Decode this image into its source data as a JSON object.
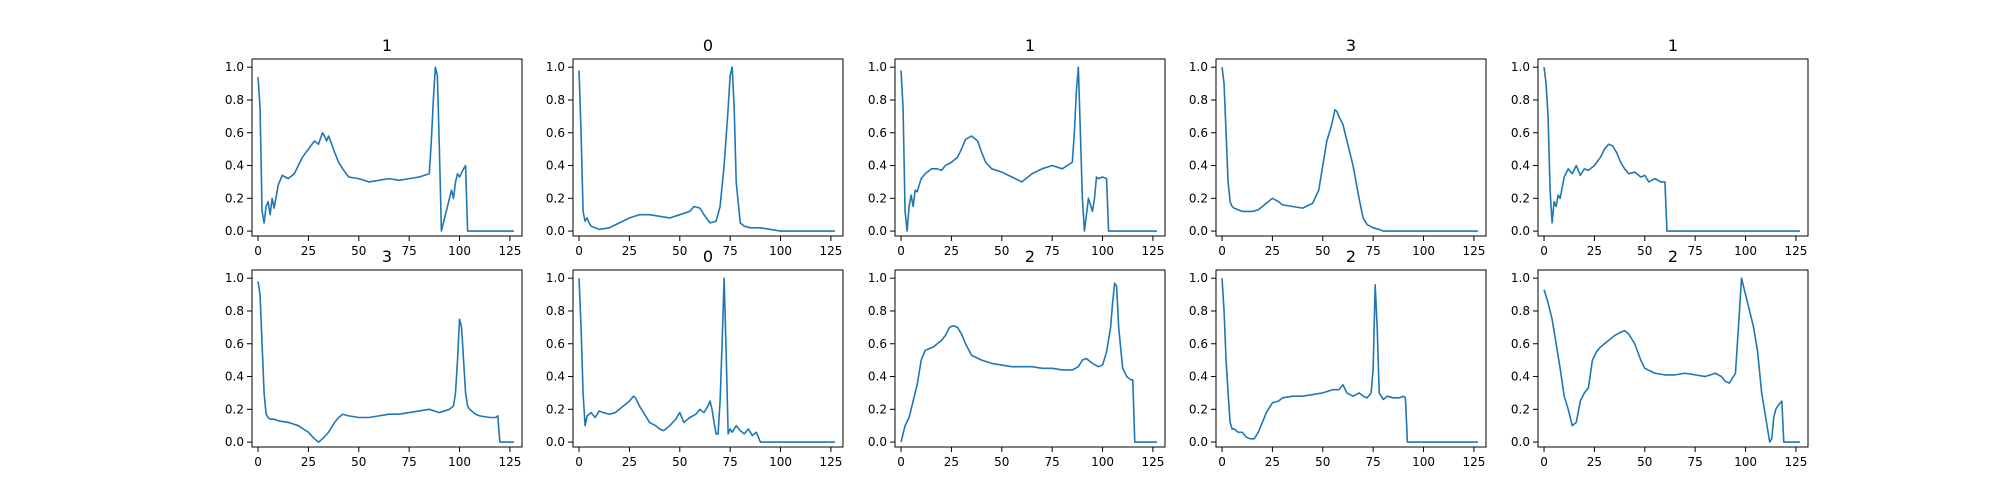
{
  "colors": {
    "line": "#1f77b4",
    "axes": "#000000",
    "background": "#ffffff"
  },
  "chart_data": [
    {
      "type": "line",
      "title": "1",
      "xlabel": "",
      "ylabel": "",
      "xlim": [
        -3,
        131
      ],
      "ylim": [
        -0.03,
        1.05
      ],
      "xticks": [
        0,
        25,
        50,
        75,
        100,
        125
      ],
      "yticks": [
        0.0,
        0.2,
        0.4,
        0.6,
        0.8,
        1.0
      ],
      "grid": false,
      "x": [
        0,
        1,
        2,
        3,
        4,
        5,
        6,
        7,
        8,
        10,
        12,
        15,
        18,
        20,
        22,
        25,
        28,
        30,
        32,
        33,
        34,
        35,
        36,
        38,
        40,
        42,
        45,
        50,
        55,
        60,
        65,
        70,
        75,
        80,
        85,
        86,
        87,
        88,
        89,
        90,
        91,
        93,
        95,
        96,
        97,
        98,
        99,
        100,
        102,
        103,
        104,
        105,
        110,
        120,
        127
      ],
      "y": [
        0.94,
        0.75,
        0.12,
        0.05,
        0.15,
        0.18,
        0.1,
        0.2,
        0.14,
        0.28,
        0.34,
        0.32,
        0.35,
        0.4,
        0.45,
        0.5,
        0.55,
        0.53,
        0.6,
        0.58,
        0.55,
        0.58,
        0.55,
        0.48,
        0.42,
        0.38,
        0.33,
        0.32,
        0.3,
        0.31,
        0.32,
        0.31,
        0.32,
        0.33,
        0.35,
        0.55,
        0.8,
        1.0,
        0.95,
        0.5,
        0.0,
        0.1,
        0.2,
        0.25,
        0.2,
        0.3,
        0.35,
        0.33,
        0.38,
        0.4,
        0.0,
        0.0,
        0.0,
        0.0,
        0.0
      ]
    },
    {
      "type": "line",
      "title": "0",
      "xlabel": "",
      "ylabel": "",
      "xlim": [
        -3,
        131
      ],
      "ylim": [
        -0.03,
        1.05
      ],
      "xticks": [
        0,
        25,
        50,
        75,
        100,
        125
      ],
      "yticks": [
        0.0,
        0.2,
        0.4,
        0.6,
        0.8,
        1.0
      ],
      "grid": false,
      "x": [
        0,
        1,
        2,
        3,
        4,
        5,
        6,
        8,
        10,
        15,
        20,
        25,
        30,
        35,
        40,
        45,
        50,
        55,
        57,
        60,
        62,
        65,
        68,
        70,
        72,
        74,
        75,
        76,
        77,
        78,
        80,
        82,
        85,
        90,
        95,
        100,
        110,
        127
      ],
      "y": [
        0.98,
        0.6,
        0.12,
        0.06,
        0.08,
        0.05,
        0.03,
        0.02,
        0.01,
        0.02,
        0.05,
        0.08,
        0.1,
        0.1,
        0.09,
        0.08,
        0.1,
        0.12,
        0.15,
        0.14,
        0.1,
        0.05,
        0.06,
        0.15,
        0.4,
        0.75,
        0.95,
        1.0,
        0.75,
        0.3,
        0.05,
        0.03,
        0.02,
        0.02,
        0.01,
        0.0,
        0.0,
        0.0
      ]
    },
    {
      "type": "line",
      "title": "1",
      "xlabel": "",
      "ylabel": "",
      "xlim": [
        -3,
        131
      ],
      "ylim": [
        -0.03,
        1.05
      ],
      "xticks": [
        0,
        25,
        50,
        75,
        100,
        125
      ],
      "yticks": [
        0.0,
        0.2,
        0.4,
        0.6,
        0.8,
        1.0
      ],
      "grid": false,
      "x": [
        0,
        1,
        2,
        3,
        4,
        5,
        6,
        7,
        8,
        10,
        12,
        15,
        18,
        20,
        22,
        25,
        28,
        30,
        32,
        35,
        38,
        40,
        42,
        45,
        50,
        55,
        60,
        65,
        70,
        75,
        80,
        85,
        86,
        87,
        88,
        89,
        90,
        91,
        93,
        95,
        96,
        97,
        98,
        100,
        102,
        103,
        104,
        110,
        120,
        127
      ],
      "y": [
        0.98,
        0.75,
        0.12,
        0.0,
        0.15,
        0.22,
        0.15,
        0.25,
        0.24,
        0.32,
        0.35,
        0.38,
        0.38,
        0.37,
        0.4,
        0.42,
        0.45,
        0.5,
        0.56,
        0.58,
        0.55,
        0.48,
        0.42,
        0.38,
        0.36,
        0.33,
        0.3,
        0.35,
        0.38,
        0.4,
        0.38,
        0.42,
        0.6,
        0.85,
        1.0,
        0.6,
        0.2,
        0.0,
        0.2,
        0.12,
        0.2,
        0.33,
        0.32,
        0.33,
        0.32,
        0.0,
        0.0,
        0.0,
        0.0,
        0.0
      ]
    },
    {
      "type": "line",
      "title": "3",
      "xlabel": "",
      "ylabel": "",
      "xlim": [
        -3,
        131
      ],
      "ylim": [
        -0.03,
        1.05
      ],
      "xticks": [
        0,
        25,
        50,
        75,
        100,
        125
      ],
      "yticks": [
        0.0,
        0.2,
        0.4,
        0.6,
        0.8,
        1.0
      ],
      "grid": false,
      "x": [
        0,
        1,
        2,
        3,
        4,
        5,
        6,
        8,
        10,
        15,
        18,
        20,
        23,
        25,
        28,
        30,
        35,
        40,
        45,
        48,
        50,
        52,
        54,
        55,
        56,
        57,
        58,
        60,
        62,
        65,
        68,
        70,
        72,
        75,
        78,
        80,
        85,
        90,
        100,
        127
      ],
      "y": [
        1.0,
        0.9,
        0.6,
        0.3,
        0.18,
        0.15,
        0.14,
        0.13,
        0.12,
        0.12,
        0.13,
        0.15,
        0.18,
        0.2,
        0.18,
        0.16,
        0.15,
        0.14,
        0.17,
        0.25,
        0.4,
        0.55,
        0.63,
        0.68,
        0.74,
        0.73,
        0.7,
        0.65,
        0.55,
        0.4,
        0.2,
        0.08,
        0.04,
        0.02,
        0.01,
        0.0,
        0.0,
        0.0,
        0.0,
        0.0
      ]
    },
    {
      "type": "line",
      "title": "1",
      "xlabel": "",
      "ylabel": "",
      "xlim": [
        -3,
        131
      ],
      "ylim": [
        -0.03,
        1.05
      ],
      "xticks": [
        0,
        25,
        50,
        75,
        100,
        125
      ],
      "yticks": [
        0.0,
        0.2,
        0.4,
        0.6,
        0.8,
        1.0
      ],
      "grid": false,
      "x": [
        0,
        1,
        2,
        3,
        4,
        5,
        6,
        7,
        8,
        10,
        12,
        14,
        16,
        18,
        20,
        22,
        25,
        28,
        30,
        32,
        34,
        36,
        38,
        40,
        42,
        45,
        48,
        50,
        52,
        55,
        58,
        60,
        61,
        62,
        65,
        80,
        100,
        127
      ],
      "y": [
        1.0,
        0.9,
        0.7,
        0.25,
        0.05,
        0.18,
        0.15,
        0.22,
        0.2,
        0.33,
        0.38,
        0.35,
        0.4,
        0.34,
        0.38,
        0.37,
        0.4,
        0.45,
        0.5,
        0.53,
        0.52,
        0.48,
        0.42,
        0.38,
        0.35,
        0.36,
        0.33,
        0.34,
        0.3,
        0.32,
        0.3,
        0.3,
        0.0,
        0.0,
        0.0,
        0.0,
        0.0,
        0.0
      ]
    },
    {
      "type": "line",
      "title": "3",
      "xlabel": "",
      "ylabel": "",
      "xlim": [
        -3,
        131
      ],
      "ylim": [
        -0.03,
        1.05
      ],
      "xticks": [
        0,
        25,
        50,
        75,
        100,
        125
      ],
      "yticks": [
        0.0,
        0.2,
        0.4,
        0.6,
        0.8,
        1.0
      ],
      "grid": false,
      "x": [
        0,
        1,
        2,
        3,
        4,
        5,
        6,
        8,
        10,
        15,
        20,
        25,
        28,
        30,
        32,
        35,
        38,
        40,
        42,
        45,
        50,
        55,
        60,
        65,
        70,
        75,
        80,
        85,
        90,
        95,
        97,
        98,
        99,
        100,
        101,
        102,
        103,
        104,
        105,
        108,
        110,
        115,
        118,
        119,
        120,
        127
      ],
      "y": [
        0.98,
        0.9,
        0.6,
        0.3,
        0.17,
        0.15,
        0.14,
        0.14,
        0.13,
        0.12,
        0.1,
        0.06,
        0.02,
        0.0,
        0.02,
        0.06,
        0.12,
        0.15,
        0.17,
        0.16,
        0.15,
        0.15,
        0.16,
        0.17,
        0.17,
        0.18,
        0.19,
        0.2,
        0.18,
        0.2,
        0.22,
        0.3,
        0.5,
        0.75,
        0.7,
        0.5,
        0.3,
        0.22,
        0.2,
        0.17,
        0.16,
        0.15,
        0.15,
        0.16,
        0.0,
        0.0
      ]
    },
    {
      "type": "line",
      "title": "0",
      "xlabel": "",
      "ylabel": "",
      "xlim": [
        -3,
        131
      ],
      "ylim": [
        -0.03,
        1.05
      ],
      "xticks": [
        0,
        25,
        50,
        75,
        100,
        125
      ],
      "yticks": [
        0.0,
        0.2,
        0.4,
        0.6,
        0.8,
        1.0
      ],
      "grid": false,
      "x": [
        0,
        1,
        2,
        3,
        4,
        5,
        6,
        8,
        10,
        12,
        15,
        18,
        20,
        22,
        25,
        27,
        28,
        30,
        32,
        35,
        38,
        40,
        42,
        45,
        48,
        50,
        52,
        55,
        58,
        60,
        62,
        64,
        65,
        66,
        67,
        68,
        69,
        70,
        71,
        72,
        73,
        74,
        75,
        76,
        78,
        80,
        82,
        84,
        86,
        88,
        90,
        100,
        127
      ],
      "y": [
        1.0,
        0.7,
        0.3,
        0.1,
        0.16,
        0.17,
        0.18,
        0.15,
        0.19,
        0.18,
        0.17,
        0.18,
        0.2,
        0.22,
        0.25,
        0.28,
        0.27,
        0.22,
        0.18,
        0.12,
        0.1,
        0.08,
        0.07,
        0.1,
        0.14,
        0.18,
        0.12,
        0.15,
        0.17,
        0.2,
        0.18,
        0.22,
        0.25,
        0.2,
        0.12,
        0.05,
        0.05,
        0.25,
        0.6,
        1.0,
        0.55,
        0.05,
        0.08,
        0.06,
        0.1,
        0.07,
        0.05,
        0.08,
        0.04,
        0.06,
        0.0,
        0.0,
        0.0
      ]
    },
    {
      "type": "line",
      "title": "2",
      "xlabel": "",
      "ylabel": "",
      "xlim": [
        -3,
        131
      ],
      "ylim": [
        -0.03,
        1.05
      ],
      "xticks": [
        0,
        25,
        50,
        75,
        100,
        125
      ],
      "yticks": [
        0.0,
        0.2,
        0.4,
        0.6,
        0.8,
        1.0
      ],
      "grid": false,
      "x": [
        0,
        2,
        4,
        6,
        8,
        10,
        12,
        14,
        16,
        18,
        20,
        22,
        24,
        26,
        28,
        30,
        32,
        35,
        40,
        45,
        50,
        55,
        60,
        65,
        70,
        75,
        80,
        85,
        88,
        90,
        92,
        95,
        98,
        100,
        102,
        104,
        105,
        106,
        107,
        108,
        110,
        112,
        114,
        115,
        116,
        120,
        127
      ],
      "y": [
        0.0,
        0.1,
        0.15,
        0.25,
        0.35,
        0.5,
        0.56,
        0.57,
        0.58,
        0.6,
        0.62,
        0.65,
        0.7,
        0.71,
        0.7,
        0.66,
        0.6,
        0.53,
        0.5,
        0.48,
        0.47,
        0.46,
        0.46,
        0.46,
        0.45,
        0.45,
        0.44,
        0.44,
        0.46,
        0.5,
        0.51,
        0.48,
        0.46,
        0.47,
        0.55,
        0.7,
        0.85,
        0.97,
        0.95,
        0.7,
        0.45,
        0.4,
        0.38,
        0.38,
        0.0,
        0.0,
        0.0
      ]
    },
    {
      "type": "line",
      "title": "2",
      "xlabel": "",
      "ylabel": "",
      "xlim": [
        -3,
        131
      ],
      "ylim": [
        -0.03,
        1.05
      ],
      "xticks": [
        0,
        25,
        50,
        75,
        100,
        125
      ],
      "yticks": [
        0.0,
        0.2,
        0.4,
        0.6,
        0.8,
        1.0
      ],
      "grid": false,
      "x": [
        0,
        1,
        2,
        3,
        4,
        5,
        6,
        8,
        10,
        12,
        14,
        16,
        18,
        20,
        22,
        25,
        28,
        30,
        35,
        40,
        45,
        50,
        55,
        58,
        60,
        62,
        65,
        68,
        70,
        72,
        74,
        75,
        76,
        77,
        78,
        80,
        82,
        85,
        88,
        90,
        91,
        92,
        100,
        127
      ],
      "y": [
        1.0,
        0.8,
        0.5,
        0.3,
        0.12,
        0.08,
        0.08,
        0.06,
        0.06,
        0.03,
        0.02,
        0.02,
        0.06,
        0.12,
        0.18,
        0.24,
        0.25,
        0.27,
        0.28,
        0.28,
        0.29,
        0.3,
        0.32,
        0.32,
        0.35,
        0.3,
        0.28,
        0.3,
        0.28,
        0.27,
        0.3,
        0.45,
        0.96,
        0.7,
        0.3,
        0.26,
        0.28,
        0.27,
        0.27,
        0.28,
        0.27,
        0.0,
        0.0,
        0.0
      ]
    },
    {
      "type": "line",
      "title": "2",
      "xlabel": "",
      "ylabel": "",
      "xlim": [
        -3,
        131
      ],
      "ylim": [
        -0.03,
        1.05
      ],
      "xticks": [
        0,
        25,
        50,
        75,
        100,
        125
      ],
      "yticks": [
        0.0,
        0.2,
        0.4,
        0.6,
        0.8,
        1.0
      ],
      "grid": false,
      "x": [
        0,
        2,
        4,
        6,
        8,
        10,
        12,
        14,
        16,
        18,
        20,
        22,
        24,
        26,
        28,
        30,
        32,
        35,
        38,
        40,
        42,
        45,
        48,
        50,
        55,
        60,
        65,
        70,
        75,
        80,
        85,
        88,
        90,
        92,
        95,
        97,
        98,
        100,
        102,
        104,
        106,
        108,
        110,
        112,
        113,
        114,
        115,
        116,
        118,
        119,
        120,
        121,
        127
      ],
      "y": [
        0.93,
        0.85,
        0.75,
        0.6,
        0.45,
        0.28,
        0.2,
        0.1,
        0.12,
        0.25,
        0.3,
        0.33,
        0.5,
        0.55,
        0.58,
        0.6,
        0.62,
        0.65,
        0.67,
        0.68,
        0.66,
        0.6,
        0.5,
        0.45,
        0.42,
        0.41,
        0.41,
        0.42,
        0.41,
        0.4,
        0.42,
        0.4,
        0.37,
        0.36,
        0.42,
        0.8,
        1.0,
        0.9,
        0.8,
        0.7,
        0.55,
        0.3,
        0.15,
        0.0,
        0.02,
        0.15,
        0.2,
        0.22,
        0.25,
        0.0,
        0.0,
        0.0,
        0.0
      ]
    }
  ]
}
